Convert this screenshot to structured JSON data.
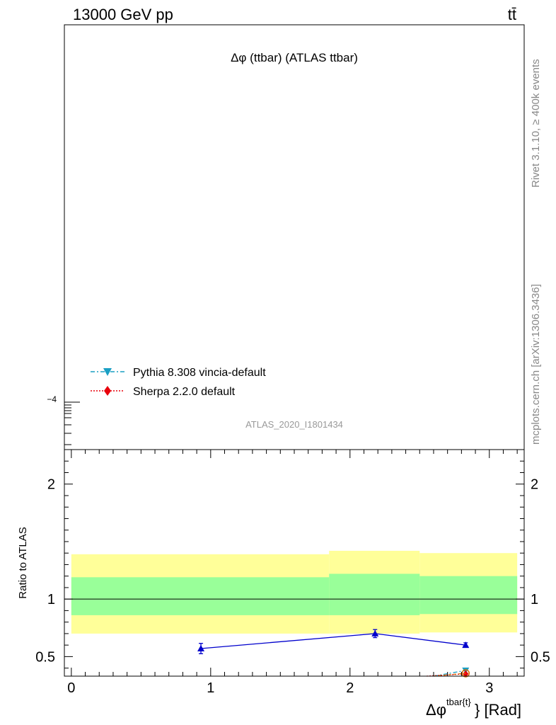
{
  "header": {
    "energy_label": "13000 GeV pp",
    "process_label": "tt̄"
  },
  "side_labels": {
    "rivet": "Rivet 3.1.10, ≥ 400k events",
    "mcplots": "mcplots.cern.ch [arXiv:1306.3436]"
  },
  "main_panel": {
    "title": "Δφ (ttbar) (ATLAS ttbar)",
    "analysis_id": "ATLAS_2020_I1801434",
    "y_tick_label": "−4",
    "legend": [
      {
        "name": "Pythia 8.308 vincia-default",
        "color": "#1a9fc4",
        "marker": "triangle-down",
        "style": "dash-dot"
      },
      {
        "name": "Sherpa 2.2.0 default",
        "color": "#e8000b",
        "marker": "diamond",
        "style": "dotted"
      }
    ]
  },
  "chart_data": {
    "type": "line",
    "xlabel": "Δφ^{tbar{t}} [Rad]",
    "xlabel_main": "Δφ",
    "xlabel_sup": "tbar{t}",
    "xlabel_tail": "} [Rad]",
    "ylabel": "Ratio to ATLAS",
    "xlim": [
      -0.05,
      3.25
    ],
    "ylim": [
      0.33,
      2.3
    ],
    "x_ticks": [
      0,
      1,
      2,
      3
    ],
    "y_ticks": [
      0.5,
      1,
      2
    ],
    "reference_line": 1,
    "bands": [
      {
        "x0": 0.0,
        "x1": 1.85,
        "green": [
          0.86,
          1.19
        ],
        "yellow": [
          0.7,
          1.39
        ]
      },
      {
        "x0": 1.85,
        "x1": 2.5,
        "green": [
          0.86,
          1.22
        ],
        "yellow": [
          0.7,
          1.42
        ]
      },
      {
        "x0": 2.5,
        "x1": 3.2,
        "green": [
          0.87,
          1.2
        ],
        "yellow": [
          0.71,
          1.4
        ]
      }
    ],
    "series": [
      {
        "color": "#0000cc",
        "marker": "triangle-up",
        "x": [
          0.93,
          2.18,
          2.83
        ],
        "y": [
          0.57,
          0.7,
          0.6
        ],
        "yerr": [
          0.045,
          0.035,
          0.02
        ]
      },
      {
        "name": "Pythia 8.308 vincia-default",
        "color": "#1a9fc4",
        "marker": "triangle-down",
        "x": [
          2.6,
          2.83
        ],
        "y": [
          0.33,
          0.38
        ]
      },
      {
        "name": "Sherpa 2.2.0 default",
        "color": "#e8000b",
        "marker": "diamond",
        "x": [
          2.55,
          2.83
        ],
        "y": [
          0.33,
          0.35
        ]
      },
      {
        "color": "#d46a00",
        "marker": "circle-open",
        "x": [
          2.6,
          2.83
        ],
        "y": [
          0.33,
          0.355
        ]
      }
    ]
  }
}
